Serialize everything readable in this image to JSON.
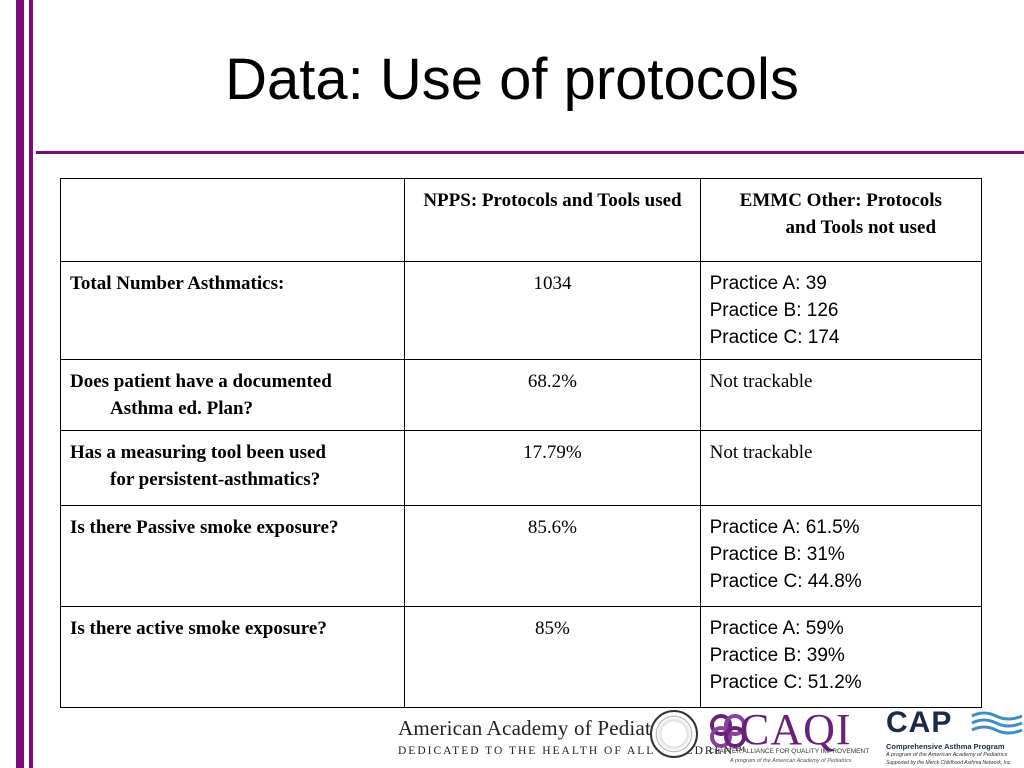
{
  "slide": {
    "title": "Data: Use of protocols"
  },
  "table": {
    "headers": [
      "",
      "NPPS: Protocols and Tools used",
      [
        "EMMC Other: Protocols",
        "and Tools not used"
      ]
    ],
    "rows": [
      {
        "label": [
          "Total Number Asthmatics:"
        ],
        "npps": "1034",
        "emmc": [
          "Practice A: 39",
          "Practice B: 126",
          "Practice C: 174"
        ]
      },
      {
        "label": [
          "Does patient have a documented",
          "Asthma ed. Plan?"
        ],
        "npps": "68.2%",
        "emmc": [
          "Not trackable"
        ]
      },
      {
        "label": [
          "Has a measuring tool been used",
          "for persistent-asthmatics?"
        ],
        "npps": "17.79%",
        "emmc": [
          "Not trackable"
        ]
      },
      {
        "label": [
          "Is there Passive smoke exposure?"
        ],
        "npps": "85.6%",
        "emmc": [
          "Practice A: 61.5%",
          "Practice B: 31%",
          "Practice C: 44.8%"
        ]
      },
      {
        "label": [
          "Is there active smoke exposure?"
        ],
        "npps": "85%",
        "emmc": [
          "Practice A: 59%",
          "Practice B: 39%",
          "Practice C: 51.2%"
        ]
      }
    ]
  },
  "footer": {
    "aap_name": "American Academy of Pediatrics",
    "aap_tagline": "DEDICATED TO THE HEALTH OF ALL CHILDREN™",
    "caqi_name": "CAQI",
    "caqi_line1": "CHAPTER ALLIANCE FOR QUALITY IMPROVEMENT",
    "caqi_line2": "A program of the American Academy of Pediatrics",
    "cap_name": "CAP",
    "cap_line1": "Comprehensive Asthma Program",
    "cap_line2": "A program of the American Academy of Pediatrics",
    "cap_line3": "Supported by the Merck Childhood Asthma Network, Inc."
  },
  "colors": {
    "accent_purple": "#7f0a80",
    "caqi_purple": "#6a1f7a",
    "cap_navy": "#1a2a4a",
    "cap_wave": "#3f8fc4"
  }
}
